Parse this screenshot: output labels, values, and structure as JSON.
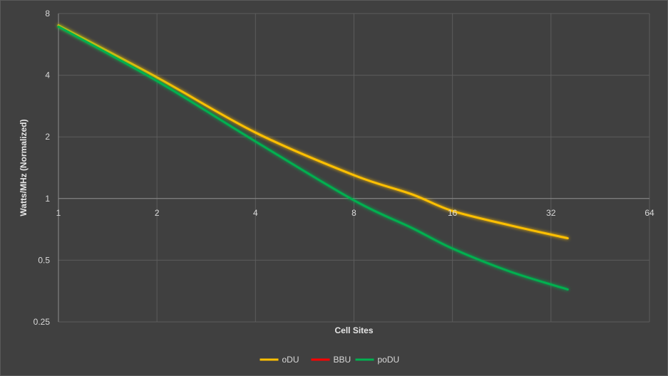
{
  "chart_data": {
    "type": "line",
    "title": "",
    "xlabel": "Cell Sites",
    "ylabel": "Watts/MHz (Normalized)",
    "x_scale": "log2",
    "y_scale": "log2",
    "xlim": [
      1,
      64
    ],
    "ylim": [
      0.25,
      8
    ],
    "x_ticks": [
      "1",
      "2",
      "4",
      "8",
      "16",
      "32",
      "64"
    ],
    "y_ticks": [
      "8",
      "4",
      "2",
      "1",
      "0.5",
      "0.25"
    ],
    "grid": true,
    "legend_position": "bottom",
    "series": [
      {
        "name": "oDU",
        "color": "#ffc000",
        "x": [
          1,
          2,
          4,
          8,
          12,
          16,
          24,
          36
        ],
        "y": [
          7.0,
          3.9,
          2.1,
          1.3,
          1.05,
          0.87,
          0.74,
          0.64
        ]
      },
      {
        "name": "BBU",
        "color": "#ff0000",
        "x": [
          1,
          36
        ],
        "y": [
          1.0,
          1.0
        ]
      },
      {
        "name": "poDU",
        "color": "#00b050",
        "x": [
          1,
          2,
          4,
          8,
          12,
          16,
          24,
          36
        ],
        "y": [
          6.9,
          3.75,
          1.9,
          0.98,
          0.72,
          0.57,
          0.44,
          0.36
        ]
      }
    ]
  }
}
